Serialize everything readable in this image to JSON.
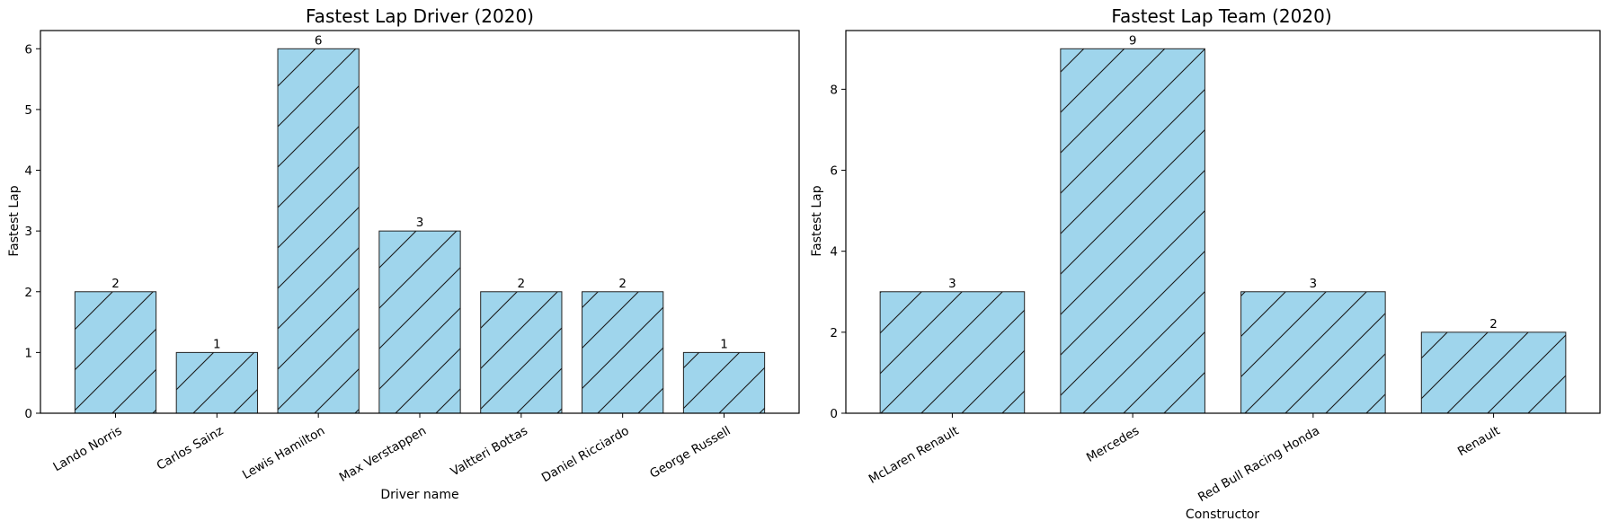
{
  "chart_data": [
    {
      "type": "bar",
      "title": "Fastest Lap Driver (2020)",
      "xlabel": "Driver name",
      "ylabel": "Fastest Lap",
      "categories": [
        "Lando Norris",
        "Carlos Sainz",
        "Lewis Hamilton",
        "Max Verstappen",
        "Valtteri Bottas",
        "Daniel Ricciardo",
        "George Russell"
      ],
      "values": [
        2,
        1,
        6,
        3,
        2,
        2,
        1
      ],
      "ylim": [
        0,
        6.3
      ],
      "yticks": [
        0,
        1,
        2,
        3,
        4,
        5,
        6
      ],
      "bar_color": "#9fd5ec",
      "edge_color": "#222222",
      "hatch": "/",
      "grid": false,
      "xtick_rotation": -30
    },
    {
      "type": "bar",
      "title": "Fastest Lap Team (2020)",
      "xlabel": "Constructor",
      "ylabel": "Fastest Lap",
      "categories": [
        "McLaren Renault",
        "Mercedes",
        "Red Bull Racing Honda",
        "Renault"
      ],
      "values": [
        3,
        9,
        3,
        2
      ],
      "ylim": [
        0,
        9.45
      ],
      "yticks": [
        0,
        2,
        4,
        6,
        8
      ],
      "bar_color": "#9fd5ec",
      "edge_color": "#222222",
      "hatch": "/",
      "grid": false,
      "xtick_rotation": -30
    }
  ]
}
